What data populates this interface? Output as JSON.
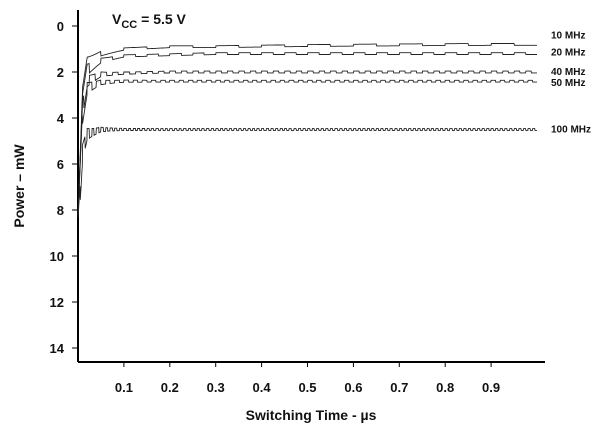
{
  "chart_data": {
    "type": "line",
    "title": {
      "prefix": "V",
      "subscript": "CC",
      "suffix": " = 5.5 V"
    },
    "xlabel": "Switching Time - µs",
    "ylabel": "Power – mW",
    "xlim": [
      0,
      1.0
    ],
    "ylim": [
      0,
      14
    ],
    "y_inverted": true,
    "x_ticks": [
      "0.1",
      "0.2",
      "0.3",
      "0.4",
      "0.5",
      "0.6",
      "0.7",
      "0.8",
      "0.9"
    ],
    "x_tick_values": [
      0.1,
      0.2,
      0.3,
      0.4,
      0.5,
      0.6,
      0.7,
      0.8,
      0.9
    ],
    "y_ticks": [
      "0",
      "2",
      "4",
      "6",
      "8",
      "10",
      "12",
      "14"
    ],
    "y_tick_values": [
      0,
      2,
      4,
      6,
      8,
      10,
      12,
      14
    ],
    "grid": false,
    "series": [
      {
        "name": "10 MHz",
        "color": "#222222",
        "freq_mhz": 10,
        "x": [
          0.0,
          0.01,
          0.02,
          0.05,
          0.1,
          0.2,
          0.3,
          0.5,
          0.7,
          0.9,
          1.0
        ],
        "y": [
          8.8,
          3.0,
          1.6,
          1.2,
          1.0,
          0.9,
          0.9,
          0.85,
          0.82,
          0.8,
          0.8
        ]
      },
      {
        "name": "20 MHz",
        "color": "#222222",
        "freq_mhz": 20,
        "x": [
          0.0,
          0.01,
          0.02,
          0.05,
          0.1,
          0.2,
          0.3,
          0.5,
          0.7,
          0.9,
          1.0
        ],
        "y": [
          8.8,
          3.3,
          1.9,
          1.5,
          1.3,
          1.25,
          1.2,
          1.2,
          1.2,
          1.2,
          1.2
        ]
      },
      {
        "name": "40 MHz",
        "color": "#222222",
        "freq_mhz": 40,
        "x": [
          0.0,
          0.01,
          0.02,
          0.05,
          0.1,
          0.2,
          0.3,
          0.5,
          0.7,
          0.9,
          1.0
        ],
        "y": [
          8.8,
          3.6,
          2.4,
          2.1,
          2.05,
          2.0,
          2.0,
          2.0,
          2.0,
          2.0,
          2.0
        ]
      },
      {
        "name": "50 MHz",
        "color": "#222222",
        "freq_mhz": 50,
        "x": [
          0.0,
          0.01,
          0.02,
          0.05,
          0.1,
          0.2,
          0.3,
          0.5,
          0.7,
          0.9,
          1.0
        ],
        "y": [
          8.8,
          3.9,
          2.7,
          2.45,
          2.4,
          2.4,
          2.4,
          2.4,
          2.4,
          2.4,
          2.4
        ]
      },
      {
        "name": "100 MHz",
        "color": "#222222",
        "freq_mhz": 100,
        "x": [
          0.0,
          0.01,
          0.02,
          0.05,
          0.1,
          0.2,
          0.3,
          0.5,
          0.7,
          0.9,
          1.0
        ],
        "y": [
          8.8,
          5.5,
          4.7,
          4.5,
          4.5,
          4.5,
          4.5,
          4.5,
          4.5,
          4.5,
          4.5
        ]
      }
    ]
  }
}
